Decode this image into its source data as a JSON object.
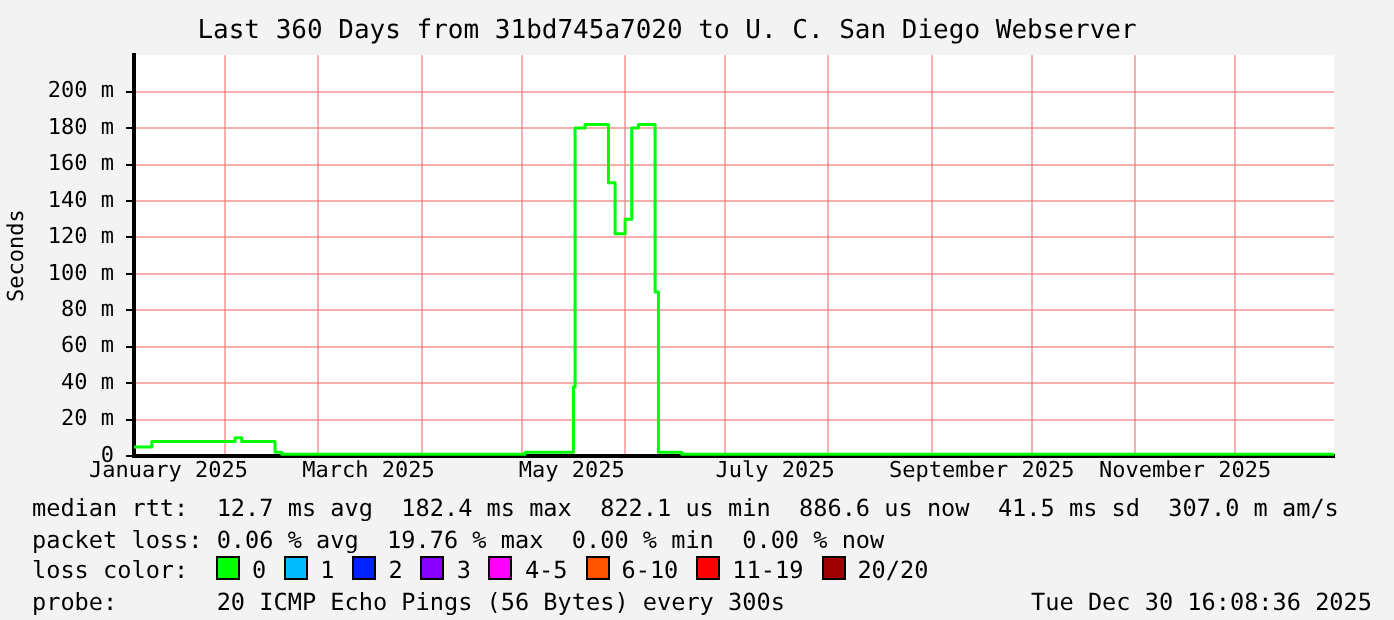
{
  "chart_data": {
    "type": "step",
    "title": "Last 360 Days from 31bd745a7020 to U. C. San Diego Webserver",
    "ylabel": "Seconds",
    "x": [
      "2025-01-04T16:08",
      "2025-01-10",
      "2025-02-04",
      "2025-02-06",
      "2025-02-16",
      "2025-02-18",
      "2025-05-02",
      "2025-05-16T12:00",
      "2025-05-17",
      "2025-05-20",
      "2025-05-27",
      "2025-05-29",
      "2025-06-01",
      "2025-06-03",
      "2025-06-05",
      "2025-06-10",
      "2025-06-11",
      "2025-06-18",
      "2025-12-30T16:08"
    ],
    "series": [
      {
        "name": "0",
        "color": "#00ff00",
        "values": [
          5,
          8,
          10,
          8,
          2,
          1,
          2,
          38,
          180,
          182,
          150,
          122,
          130,
          180,
          182,
          90,
          2,
          1,
          1
        ]
      },
      {
        "name": "1",
        "color": "#00bbff",
        "values": [
          null,
          null,
          null,
          null,
          null,
          null,
          null,
          null,
          null,
          null,
          null,
          null,
          null,
          null,
          null,
          null,
          null,
          null,
          null
        ]
      },
      {
        "name": "2",
        "color": "#0022ff",
        "values": [
          null,
          null,
          null,
          null,
          null,
          null,
          null,
          null,
          null,
          null,
          null,
          null,
          null,
          null,
          null,
          null,
          null,
          null,
          null
        ]
      },
      {
        "name": "3",
        "color": "#8a00ff",
        "values": [
          null,
          null,
          null,
          null,
          null,
          null,
          null,
          null,
          null,
          null,
          null,
          null,
          null,
          null,
          null,
          null,
          null,
          null,
          null
        ]
      },
      {
        "name": "4-5",
        "color": "#ff00ff",
        "values": [
          null,
          null,
          null,
          null,
          null,
          null,
          null,
          null,
          null,
          null,
          null,
          null,
          null,
          null,
          null,
          null,
          null,
          null,
          null
        ]
      },
      {
        "name": "6-10",
        "color": "#ff5500",
        "values": [
          null,
          null,
          null,
          null,
          null,
          null,
          null,
          null,
          null,
          null,
          null,
          null,
          null,
          null,
          null,
          null,
          null,
          null,
          null
        ]
      },
      {
        "name": "11-19",
        "color": "#ff0000",
        "values": [
          null,
          null,
          null,
          null,
          null,
          null,
          null,
          null,
          null,
          null,
          null,
          null,
          null,
          null,
          null,
          null,
          null,
          null,
          null
        ]
      },
      {
        "name": "20/20",
        "color": "#a10000",
        "values": [
          null,
          null,
          null,
          null,
          null,
          null,
          null,
          null,
          null,
          null,
          null,
          null,
          null,
          null,
          null,
          null,
          null,
          null,
          null
        ]
      }
    ],
    "legend_title": "loss color:",
    "legend": "bottom",
    "xlim": [
      "2025-01-04T16:08",
      "2025-12-30T16:08"
    ],
    "xticks": [
      {
        "value": "2025-01-15",
        "label": "January 2025"
      },
      {
        "value": "2025-02-01",
        "label": null
      },
      {
        "value": "2025-03-01",
        "label": null
      },
      {
        "value": "2025-03-16",
        "label": "March 2025"
      },
      {
        "value": "2025-04-01",
        "label": null
      },
      {
        "value": "2025-05-01",
        "label": null
      },
      {
        "value": "2025-05-16",
        "label": "May 2025"
      },
      {
        "value": "2025-06-01",
        "label": null
      },
      {
        "value": "2025-07-01",
        "label": null
      },
      {
        "value": "2025-07-16",
        "label": "July 2025"
      },
      {
        "value": "2025-08-01",
        "label": null
      },
      {
        "value": "2025-09-01",
        "label": null
      },
      {
        "value": "2025-09-16",
        "label": "September 2025"
      },
      {
        "value": "2025-10-01",
        "label": null
      },
      {
        "value": "2025-11-01",
        "label": null
      },
      {
        "value": "2025-11-16",
        "label": "November 2025"
      },
      {
        "value": "2025-12-01",
        "label": null
      }
    ],
    "ylim": [
      0,
      220
    ],
    "yticks": [
      0,
      {
        "value": 20,
        "label": "20 m"
      },
      {
        "value": 40,
        "label": "40 m"
      },
      {
        "value": 60,
        "label": "60 m"
      },
      {
        "value": 80,
        "label": "80 m"
      },
      {
        "value": 100,
        "label": "100 m"
      },
      {
        "value": 120,
        "label": "120 m"
      },
      {
        "value": 140,
        "label": "140 m"
      },
      {
        "value": 160,
        "label": "160 m"
      },
      {
        "value": 180,
        "label": "180 m"
      },
      {
        "value": 200,
        "label": "200 m"
      }
    ],
    "grid": true,
    "annotations": [
      "median rtt:  12.7 ms avg  182.4 ms max  822.1 us min  886.6 us now  41.5 ms sd  307.0 m am/s",
      "packet loss: 0.06 % avg  19.76 % max  0.00 % min  0.00 % now",
      "probe:       20 ICMP Echo Pings (56 Bytes) every 300s",
      "Tue Dec 30 16:08:36 2025"
    ]
  }
}
